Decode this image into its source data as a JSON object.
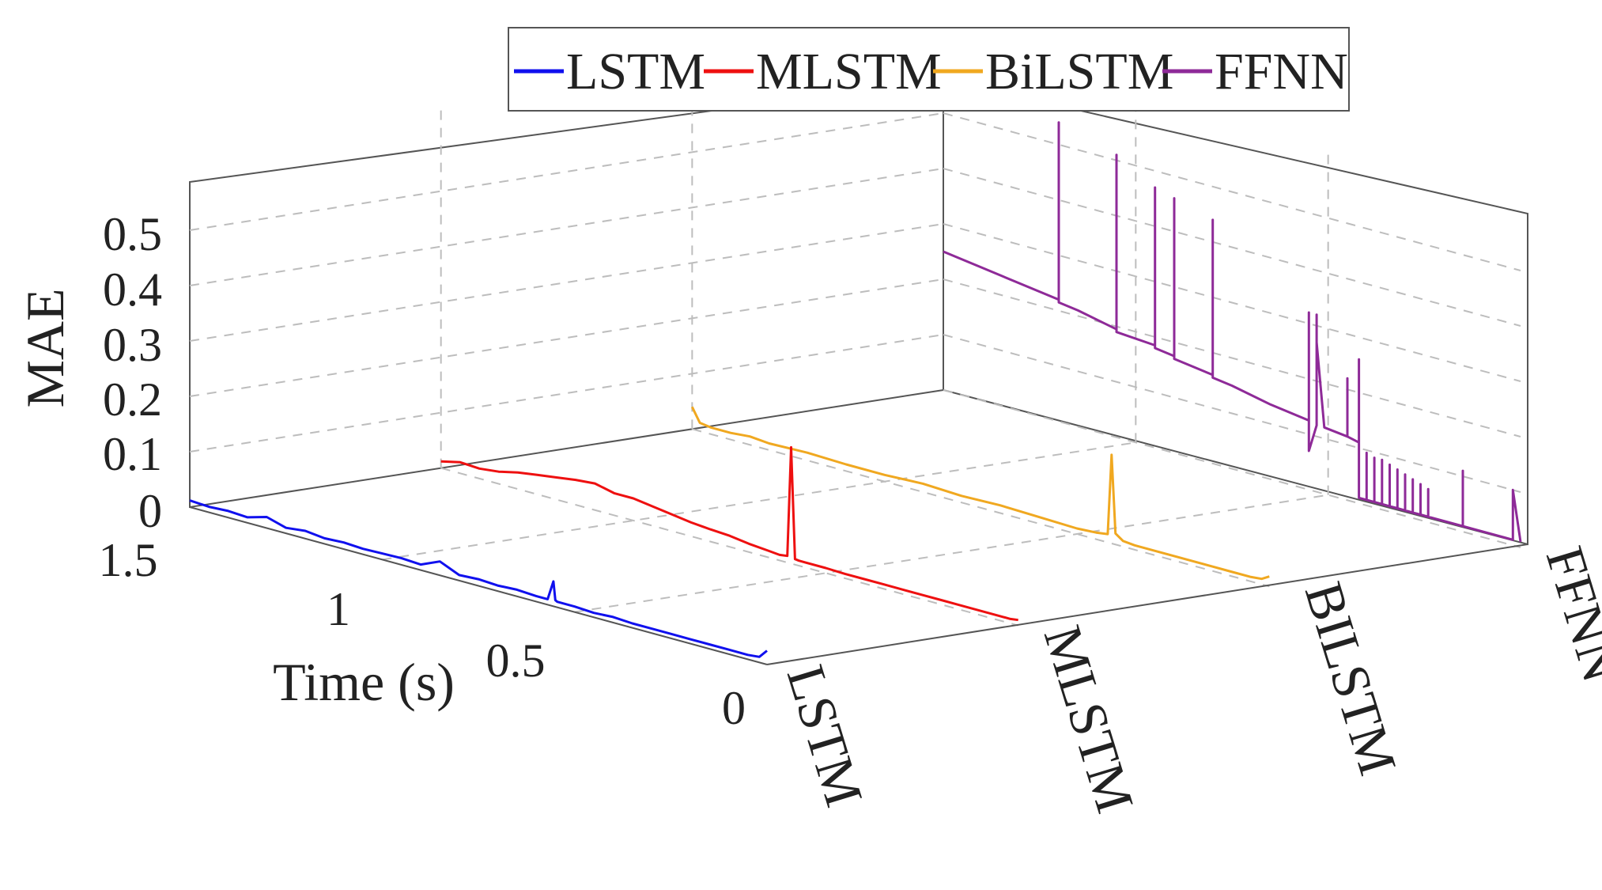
{
  "chart_data": {
    "type": "line",
    "title": "",
    "xlabel": "Time (s)",
    "ylabel": "",
    "zlabel": "MAE",
    "xlim": [
      0,
      1.5
    ],
    "zlim": [
      0,
      0.55
    ],
    "x_ticks": [
      "0",
      "0.5",
      "1",
      "1.5"
    ],
    "x_tick_values": [
      0,
      0.5,
      1,
      1.5
    ],
    "z_ticks": [
      "0",
      "0.1",
      "0.2",
      "0.3",
      "0.4",
      "0.5"
    ],
    "z_tick_values": [
      0,
      0.1,
      0.2,
      0.3,
      0.4,
      0.5
    ],
    "categories": [
      "LSTM",
      "MLSTM",
      "BiLSTM",
      "FFNN"
    ],
    "category_labels": [
      "LSTM",
      "MLSTM",
      "BILSTM",
      "FFNN"
    ],
    "legend": {
      "position": "top",
      "entries": [
        "LSTM",
        "MLSTM",
        "BiLSTM",
        "FFNN"
      ]
    },
    "series": [
      {
        "name": "LSTM",
        "color": "#1010ee",
        "x": [
          1.5,
          1.45,
          1.4,
          1.35,
          1.3,
          1.25,
          1.2,
          1.15,
          1.1,
          1.05,
          1.0,
          0.95,
          0.9,
          0.85,
          0.8,
          0.75,
          0.7,
          0.65,
          0.6,
          0.57,
          0.555,
          0.55,
          0.545,
          0.5,
          0.45,
          0.4,
          0.35,
          0.3,
          0.25,
          0.2,
          0.15,
          0.1,
          0.05,
          0.02,
          0.0
        ],
        "values": [
          0.012,
          0.01,
          0.012,
          0.01,
          0.02,
          0.01,
          0.014,
          0.01,
          0.012,
          0.01,
          0.011,
          0.012,
          0.01,
          0.025,
          0.01,
          0.012,
          0.01,
          0.012,
          0.01,
          0.01,
          0.045,
          0.012,
          0.01,
          0.01,
          0.008,
          0.01,
          0.008,
          0.008,
          0.008,
          0.008,
          0.008,
          0.008,
          0.008,
          0.01,
          0.025
        ]
      },
      {
        "name": "MLSTM",
        "color": "#ee1010",
        "x": [
          1.5,
          1.45,
          1.4,
          1.35,
          1.3,
          1.25,
          1.2,
          1.15,
          1.1,
          1.05,
          1.0,
          0.95,
          0.9,
          0.85,
          0.8,
          0.75,
          0.7,
          0.65,
          0.62,
          0.6,
          0.59,
          0.58,
          0.57,
          0.5,
          0.45,
          0.4,
          0.35,
          0.3,
          0.25,
          0.2,
          0.15,
          0.1,
          0.05,
          0.02,
          0.0
        ],
        "values": [
          0.012,
          0.02,
          0.018,
          0.022,
          0.03,
          0.035,
          0.04,
          0.045,
          0.048,
          0.04,
          0.04,
          0.035,
          0.03,
          0.025,
          0.022,
          0.02,
          0.015,
          0.012,
          0.01,
          0.012,
          0.21,
          0.01,
          0.009,
          0.009,
          0.008,
          0.008,
          0.008,
          0.008,
          0.008,
          0.008,
          0.008,
          0.008,
          0.008,
          0.008,
          0.01
        ]
      },
      {
        "name": "BiLSTM",
        "color": "#f0a820",
        "x": [
          1.5,
          1.48,
          1.45,
          1.4,
          1.35,
          1.3,
          1.2,
          1.1,
          1.0,
          0.9,
          0.8,
          0.7,
          0.6,
          0.5,
          0.45,
          0.42,
          0.41,
          0.4,
          0.38,
          0.35,
          0.3,
          0.25,
          0.2,
          0.15,
          0.1,
          0.05,
          0.02,
          0.0
        ],
        "values": [
          0.04,
          0.015,
          0.012,
          0.012,
          0.015,
          0.012,
          0.014,
          0.012,
          0.012,
          0.015,
          0.012,
          0.014,
          0.012,
          0.01,
          0.012,
          0.015,
          0.16,
          0.02,
          0.01,
          0.008,
          0.008,
          0.008,
          0.008,
          0.008,
          0.008,
          0.008,
          0.01,
          0.018
        ]
      },
      {
        "name": "FFNN",
        "color": "#8e2a98",
        "x": [
          1.5,
          1.45,
          1.4,
          1.35,
          1.2,
          1.2,
          1.2,
          1.15,
          1.05,
          1.05,
          1.05,
          0.95,
          0.95,
          0.95,
          0.9,
          0.9,
          0.9,
          0.8,
          0.8,
          0.8,
          0.75,
          0.65,
          0.55,
          0.55,
          0.55,
          0.53,
          0.53,
          0.53,
          0.53,
          0.51,
          0.45,
          0.45,
          0.45,
          0.42,
          0.42,
          0.42,
          0.4,
          0.4,
          0.4,
          0.38,
          0.38,
          0.38,
          0.36,
          0.36,
          0.36,
          0.34,
          0.34,
          0.34,
          0.32,
          0.32,
          0.32,
          0.3,
          0.3,
          0.3,
          0.28,
          0.28,
          0.28,
          0.26,
          0.26,
          0.26,
          0.24,
          0.24,
          0.24,
          0.15,
          0.15,
          0.15,
          0.1,
          0.02,
          0.02,
          0.0
        ],
        "values": [
          0.25,
          0.245,
          0.24,
          0.235,
          0.22,
          0.54,
          0.215,
          0.21,
          0.195,
          0.51,
          0.19,
          0.185,
          0.47,
          0.18,
          0.175,
          0.46,
          0.17,
          0.16,
          0.44,
          0.155,
          0.15,
          0.135,
          0.125,
          0.32,
          0.07,
          0.12,
          0.32,
          0.12,
          0.27,
          0.12,
          0.115,
          0.22,
          0.115,
          0.11,
          0.26,
          0.01,
          0.01,
          0.095,
          0.01,
          0.01,
          0.09,
          0.01,
          0.01,
          0.09,
          0.01,
          0.01,
          0.085,
          0.01,
          0.01,
          0.08,
          0.01,
          0.01,
          0.075,
          0.01,
          0.01,
          0.07,
          0.01,
          0.01,
          0.065,
          0.01,
          0.01,
          0.06,
          0.01,
          0.01,
          0.11,
          0.01,
          0.01,
          0.01,
          0.1,
          0.01
        ]
      }
    ]
  }
}
